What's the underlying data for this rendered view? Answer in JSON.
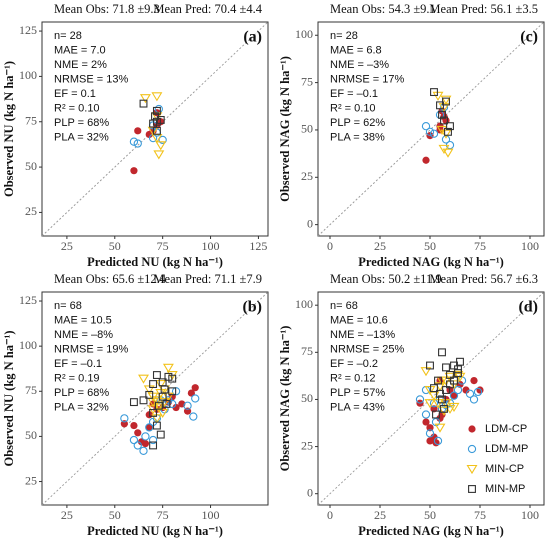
{
  "chart_data": [
    {
      "type": "scatter",
      "panel": "(a)",
      "header": [
        "Mean Obs: 71.8 ±9.3",
        "Mean Pred: 70.4 ±4.4"
      ],
      "annotations": [
        "n= 28",
        "MAE = 7.0",
        "NME = 2%",
        "NRMSE = 13%",
        "EF = 0.1",
        "R² = 0.10",
        "PLP = 68%",
        "PLA = 32%"
      ],
      "xlabel": "Predicted NU (kg N ha⁻¹)",
      "ylabel": "Observed NU (kg N ha⁻¹)",
      "xlim": [
        12,
        130
      ],
      "ylim": [
        12,
        130
      ],
      "xticks": [
        25,
        50,
        75,
        100,
        125
      ],
      "yticks": [
        25,
        50,
        75,
        100,
        125
      ],
      "series": [
        {
          "color": "#c1272d",
          "marker": "circle-filled",
          "x": [
            60,
            62,
            70,
            72,
            72,
            74,
            68
          ],
          "y": [
            48,
            70,
            70,
            73,
            80,
            75,
            68
          ]
        },
        {
          "color": "#3a9ad9",
          "marker": "circle-open",
          "x": [
            60,
            62,
            70,
            72,
            75,
            73,
            70
          ],
          "y": [
            64,
            63,
            66,
            69,
            65,
            82,
            73
          ]
        },
        {
          "color": "#f2c21b",
          "marker": "triangle-down",
          "x": [
            66,
            72,
            72,
            72,
            74,
            73,
            70
          ],
          "y": [
            88,
            89,
            78,
            66,
            62,
            57,
            70
          ]
        },
        {
          "color": "#333333",
          "marker": "square",
          "x": [
            65,
            72,
            71,
            70,
            72,
            74,
            72
          ],
          "y": [
            85,
            81,
            78,
            74,
            70,
            76,
            75
          ]
        }
      ]
    },
    {
      "type": "scatter",
      "panel": "(c)",
      "header": [
        "Mean Obs: 54.3 ±9.1",
        "Mean Pred: 56.1 ±3.5"
      ],
      "annotations": [
        "n= 28",
        "MAE = 6.8",
        "NME = –3%",
        "NRMSE = 17%",
        "EF = –0.1",
        "R² = 0.10",
        "PLP = 62%",
        "PLA = 38%"
      ],
      "xlabel": "Predicted NAG (kg N ha⁻¹)",
      "ylabel": "Observed NAG (kg N ha⁻¹)",
      "xlim": [
        -6,
        107
      ],
      "ylim": [
        -6,
        107
      ],
      "xticks": [
        0,
        25,
        50,
        75,
        100
      ],
      "yticks": [
        0,
        25,
        50,
        75,
        100
      ],
      "series": [
        {
          "color": "#c1272d",
          "marker": "circle-filled",
          "x": [
            48,
            50,
            55,
            57,
            58,
            56,
            55
          ],
          "y": [
            34,
            47,
            52,
            57,
            55,
            60,
            50
          ]
        },
        {
          "color": "#3a9ad9",
          "marker": "circle-open",
          "x": [
            48,
            52,
            58,
            60,
            57,
            55,
            50
          ],
          "y": [
            52,
            48,
            45,
            42,
            62,
            58,
            49
          ]
        },
        {
          "color": "#f2c21b",
          "marker": "triangle-down",
          "x": [
            54,
            58,
            57,
            58,
            57,
            59,
            56
          ],
          "y": [
            68,
            66,
            62,
            48,
            40,
            38,
            50
          ]
        },
        {
          "color": "#333333",
          "marker": "square",
          "x": [
            52,
            55,
            58,
            57,
            60,
            59,
            56
          ],
          "y": [
            70,
            63,
            65,
            55,
            52,
            49,
            58
          ]
        }
      ]
    },
    {
      "type": "scatter",
      "panel": "(b)",
      "header": [
        "Mean Obs: 65.6 ±12.4",
        "Mean Pred: 71.1 ±7.9"
      ],
      "annotations": [
        "n= 68",
        "MAE = 10.5",
        "NME = –8%",
        "NRMSE = 19%",
        "EF = –0.1",
        "R² = 0.19",
        "PLP = 68%",
        "PLA = 32%"
      ],
      "xlabel": "Predicted NU (kg N ha⁻¹)",
      "ylabel": "Observed NU (kg N ha⁻¹)",
      "xlim": [
        12,
        130
      ],
      "ylim": [
        12,
        130
      ],
      "xticks": [
        25,
        50,
        75,
        100
      ],
      "yticks": [
        25,
        50,
        75,
        100,
        125
      ],
      "series": [
        {
          "color": "#c1272d",
          "marker": "circle-filled",
          "x": [
            55,
            60,
            62,
            64,
            66,
            68,
            68,
            70,
            72,
            75,
            78,
            80,
            82,
            85,
            90,
            92,
            88
          ],
          "y": [
            57,
            56,
            52,
            47,
            46,
            55,
            62,
            68,
            65,
            66,
            69,
            72,
            66,
            68,
            74,
            77,
            64
          ]
        },
        {
          "color": "#3a9ad9",
          "marker": "circle-open",
          "x": [
            55,
            60,
            62,
            65,
            66,
            68,
            70,
            72,
            74,
            76,
            78,
            80,
            82,
            88,
            92,
            91,
            70
          ],
          "y": [
            60,
            48,
            45,
            42,
            50,
            55,
            58,
            60,
            70,
            65,
            70,
            68,
            75,
            67,
            71,
            61,
            48
          ]
        },
        {
          "color": "#f2c21b",
          "marker": "triangle-down",
          "x": [
            65,
            68,
            70,
            70,
            72,
            73,
            74,
            75,
            76,
            78,
            80,
            72,
            74,
            76,
            70,
            78,
            73
          ],
          "y": [
            82,
            76,
            72,
            65,
            70,
            67,
            74,
            63,
            69,
            88,
            84,
            60,
            79,
            76,
            69,
            72,
            66
          ]
        },
        {
          "color": "#333333",
          "marker": "square",
          "x": [
            60,
            65,
            68,
            70,
            72,
            75,
            76,
            78,
            80,
            72,
            74,
            70,
            75,
            73,
            77,
            80,
            70
          ],
          "y": [
            69,
            70,
            73,
            79,
            84,
            80,
            76,
            83,
            82,
            56,
            51,
            45,
            72,
            67,
            68,
            75,
            63
          ]
        }
      ]
    },
    {
      "type": "scatter",
      "panel": "(d)",
      "header": [
        "Mean Obs: 50.2 ±11.9",
        "Mean Pred: 56.7 ±6.3"
      ],
      "annotations": [
        "n= 68",
        "MAE = 10.6",
        "NME = –13%",
        "NRMSE = 25%",
        "EF = –0.2",
        "R² = 0.12",
        "PLP = 57%",
        "PLA = 43%"
      ],
      "xlabel": "Predicted NAG (kg N ha⁻¹)",
      "ylabel": "Observed NAG (kg N ha⁻¹)",
      "xlim": [
        -6,
        107
      ],
      "ylim": [
        -6,
        107
      ],
      "xticks": [
        0,
        25,
        50,
        75,
        100
      ],
      "yticks": [
        0,
        25,
        50,
        75,
        100
      ],
      "legend": "lower right",
      "series": [
        {
          "name": "LDM-CP",
          "color": "#c1272d",
          "marker": "circle-filled",
          "x": [
            45,
            48,
            50,
            50,
            52,
            52,
            53,
            55,
            56,
            58,
            60,
            62,
            65,
            68,
            72,
            75,
            55
          ],
          "y": [
            48,
            38,
            35,
            28,
            45,
            30,
            27,
            40,
            42,
            50,
            55,
            52,
            58,
            55,
            60,
            55,
            60
          ]
        },
        {
          "name": "LDM-MP",
          "color": "#3a9ad9",
          "marker": "circle-open",
          "x": [
            45,
            48,
            50,
            52,
            53,
            55,
            56,
            58,
            60,
            62,
            64,
            66,
            70,
            72,
            74,
            48,
            54
          ],
          "y": [
            50,
            42,
            32,
            48,
            38,
            50,
            45,
            47,
            48,
            52,
            55,
            60,
            53,
            50,
            54,
            55,
            28
          ]
        },
        {
          "name": "MIN-CP",
          "color": "#f2c21b",
          "marker": "triangle-down",
          "x": [
            48,
            50,
            52,
            55,
            56,
            58,
            60,
            62,
            64,
            54,
            57,
            60,
            62,
            58,
            50,
            55,
            65
          ],
          "y": [
            65,
            55,
            52,
            57,
            60,
            48,
            62,
            58,
            63,
            48,
            44,
            45,
            46,
            60,
            48,
            35,
            62
          ]
        },
        {
          "name": "MIN-MP",
          "color": "#333333",
          "marker": "square",
          "x": [
            50,
            52,
            54,
            56,
            58,
            60,
            62,
            64,
            65,
            53,
            56,
            58,
            60,
            55,
            57,
            62,
            64
          ],
          "y": [
            68,
            56,
            60,
            75,
            67,
            63,
            68,
            66,
            70,
            42,
            50,
            55,
            58,
            53,
            45,
            60,
            64
          ]
        }
      ]
    }
  ]
}
